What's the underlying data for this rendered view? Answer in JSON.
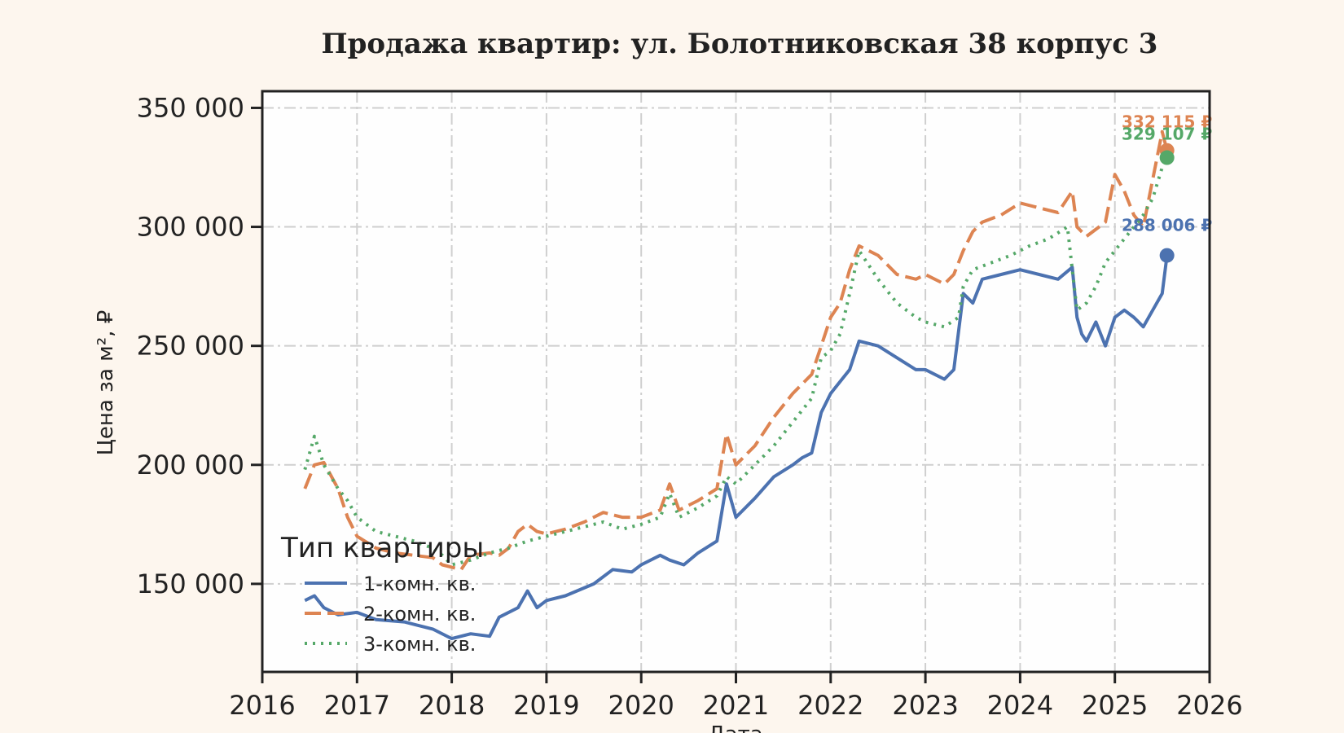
{
  "chart_data": {
    "type": "line",
    "title": "Продажа квартир: ул. Болотниковская 38 корпус 3",
    "xlabel": "Дата",
    "ylabel": "Цена за м², ₽",
    "xlim": [
      2016,
      2026
    ],
    "ylim": [
      113000,
      357000
    ],
    "x_ticks": [
      "2016",
      "2017",
      "2018",
      "2019",
      "2020",
      "2021",
      "2022",
      "2023",
      "2024",
      "2025",
      "2026"
    ],
    "y_ticks": [
      {
        "value": 150000,
        "label": "150 000"
      },
      {
        "value": 200000,
        "label": "200 000"
      },
      {
        "value": 250000,
        "label": "250 000"
      },
      {
        "value": 300000,
        "label": "300 000"
      },
      {
        "value": 350000,
        "label": "350 000"
      }
    ],
    "grid": true,
    "legend": {
      "title": "Тип квартиры",
      "placement": "lower-left"
    },
    "series": [
      {
        "name": "1-комн. кв.",
        "color": "#4c72b0",
        "style": "solid",
        "end_label": "288 006 ₽",
        "end_value": 288006,
        "x": [
          2016.45,
          2016.55,
          2016.65,
          2016.8,
          2017.0,
          2017.2,
          2017.5,
          2017.8,
          2018.0,
          2018.2,
          2018.4,
          2018.5,
          2018.7,
          2018.8,
          2018.9,
          2019.0,
          2019.2,
          2019.5,
          2019.7,
          2019.9,
          2020.0,
          2020.2,
          2020.3,
          2020.45,
          2020.6,
          2020.8,
          2020.9,
          2021.0,
          2021.2,
          2021.4,
          2021.6,
          2021.7,
          2021.8,
          2021.9,
          2022.0,
          2022.1,
          2022.2,
          2022.3,
          2022.5,
          2022.7,
          2022.9,
          2023.0,
          2023.2,
          2023.3,
          2023.35,
          2023.4,
          2023.5,
          2023.6,
          2023.8,
          2024.0,
          2024.2,
          2024.4,
          2024.55,
          2024.6,
          2024.65,
          2024.7,
          2024.8,
          2024.9,
          2025.0,
          2025.1,
          2025.2,
          2025.3,
          2025.4,
          2025.5,
          2025.55
        ],
        "values": [
          143000,
          145000,
          140000,
          137000,
          138000,
          135000,
          134000,
          131000,
          127000,
          129000,
          128000,
          136000,
          140000,
          147000,
          140000,
          143000,
          145000,
          150000,
          156000,
          155000,
          158000,
          162000,
          160000,
          158000,
          163000,
          168000,
          192000,
          178000,
          186000,
          195000,
          200000,
          203000,
          205000,
          222000,
          230000,
          235000,
          240000,
          252000,
          250000,
          245000,
          240000,
          240000,
          236000,
          240000,
          256000,
          272000,
          268000,
          278000,
          280000,
          282000,
          280000,
          278000,
          283000,
          262000,
          255000,
          252000,
          260000,
          250000,
          262000,
          265000,
          262000,
          258000,
          265000,
          272000,
          288006
        ]
      },
      {
        "name": "2-комн. кв.",
        "color": "#dd8452",
        "style": "dashed",
        "end_label": "332 115 ₽",
        "end_value": 332115,
        "x": [
          2016.45,
          2016.55,
          2016.65,
          2016.8,
          2016.9,
          2017.0,
          2017.2,
          2017.4,
          2017.6,
          2017.8,
          2017.9,
          2018.0,
          2018.1,
          2018.2,
          2018.4,
          2018.5,
          2018.6,
          2018.7,
          2018.8,
          2018.9,
          2019.0,
          2019.2,
          2019.4,
          2019.6,
          2019.8,
          2020.0,
          2020.2,
          2020.3,
          2020.4,
          2020.6,
          2020.8,
          2020.9,
          2021.0,
          2021.2,
          2021.4,
          2021.6,
          2021.8,
          2021.9,
          2022.0,
          2022.1,
          2022.2,
          2022.3,
          2022.5,
          2022.7,
          2022.9,
          2023.0,
          2023.2,
          2023.3,
          2023.4,
          2023.5,
          2023.6,
          2023.8,
          2024.0,
          2024.2,
          2024.4,
          2024.55,
          2024.6,
          2024.7,
          2024.9,
          2025.0,
          2025.1,
          2025.2,
          2025.3,
          2025.4,
          2025.5,
          2025.55
        ],
        "values": [
          190000,
          200000,
          201000,
          190000,
          178000,
          170000,
          165000,
          163000,
          162000,
          161000,
          158000,
          157000,
          156000,
          162000,
          163000,
          162000,
          165000,
          172000,
          175000,
          172000,
          171000,
          173000,
          176000,
          180000,
          178000,
          178000,
          181000,
          192000,
          181000,
          185000,
          190000,
          213000,
          200000,
          208000,
          220000,
          230000,
          238000,
          250000,
          262000,
          268000,
          282000,
          292000,
          288000,
          280000,
          278000,
          280000,
          276000,
          280000,
          290000,
          298000,
          302000,
          305000,
          310000,
          308000,
          306000,
          315000,
          300000,
          296000,
          302000,
          322000,
          315000,
          305000,
          300000,
          320000,
          340000,
          332115
        ]
      },
      {
        "name": "3-комн. кв.",
        "color": "#55a868",
        "style": "dotted",
        "end_label": "329 107 ₽",
        "end_value": 329107,
        "x": [
          2016.45,
          2016.55,
          2016.65,
          2016.8,
          2016.9,
          2017.0,
          2017.2,
          2017.4,
          2017.6,
          2017.8,
          2017.9,
          2018.0,
          2018.2,
          2018.4,
          2018.6,
          2018.8,
          2019.0,
          2019.2,
          2019.4,
          2019.6,
          2019.8,
          2020.0,
          2020.2,
          2020.3,
          2020.4,
          2020.6,
          2020.8,
          2020.9,
          2021.0,
          2021.2,
          2021.4,
          2021.6,
          2021.8,
          2021.9,
          2022.0,
          2022.1,
          2022.2,
          2022.3,
          2022.5,
          2022.7,
          2022.9,
          2023.0,
          2023.2,
          2023.35,
          2023.4,
          2023.5,
          2023.7,
          2023.9,
          2024.1,
          2024.3,
          2024.5,
          2024.55,
          2024.6,
          2024.7,
          2024.8,
          2024.9,
          2025.0,
          2025.1,
          2025.2,
          2025.3,
          2025.4,
          2025.5,
          2025.55
        ],
        "values": [
          198000,
          212000,
          200000,
          190000,
          185000,
          178000,
          172000,
          170000,
          168000,
          165000,
          162000,
          158000,
          160000,
          163000,
          165000,
          168000,
          170000,
          172000,
          174000,
          176000,
          173000,
          175000,
          178000,
          188000,
          178000,
          182000,
          187000,
          195000,
          192000,
          200000,
          208000,
          218000,
          228000,
          245000,
          248000,
          255000,
          272000,
          290000,
          278000,
          268000,
          262000,
          260000,
          258000,
          262000,
          275000,
          282000,
          285000,
          288000,
          292000,
          295000,
          300000,
          282000,
          265000,
          268000,
          275000,
          285000,
          290000,
          295000,
          300000,
          305000,
          312000,
          325000,
          329107
        ]
      }
    ]
  }
}
